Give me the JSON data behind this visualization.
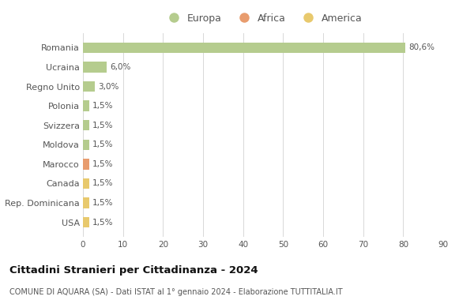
{
  "categories": [
    "Romania",
    "Ucraina",
    "Regno Unito",
    "Polonia",
    "Svizzera",
    "Moldova",
    "Marocco",
    "Canada",
    "Rep. Dominicana",
    "USA"
  ],
  "values": [
    80.6,
    6.0,
    3.0,
    1.5,
    1.5,
    1.5,
    1.5,
    1.5,
    1.5,
    1.5
  ],
  "labels": [
    "80,6%",
    "6,0%",
    "3,0%",
    "1,5%",
    "1,5%",
    "1,5%",
    "1,5%",
    "1,5%",
    "1,5%",
    "1,5%"
  ],
  "colors": [
    "#b5cc8e",
    "#b5cc8e",
    "#b5cc8e",
    "#b5cc8e",
    "#b5cc8e",
    "#b5cc8e",
    "#e89c6e",
    "#e8c96d",
    "#e8c96d",
    "#e8c96d"
  ],
  "legend": [
    {
      "label": "Europa",
      "color": "#b5cc8e"
    },
    {
      "label": "Africa",
      "color": "#e89c6e"
    },
    {
      "label": "America",
      "color": "#e8c96d"
    }
  ],
  "xlim": [
    0,
    90
  ],
  "xticks": [
    0,
    10,
    20,
    30,
    40,
    50,
    60,
    70,
    80,
    90
  ],
  "title": "Cittadini Stranieri per Cittadinanza - 2024",
  "subtitle": "COMUNE DI AQUARA (SA) - Dati ISTAT al 1° gennaio 2024 - Elaborazione TUTTITALIA.IT",
  "background_color": "#ffffff",
  "grid_color": "#d8d8d8",
  "bar_height": 0.55
}
